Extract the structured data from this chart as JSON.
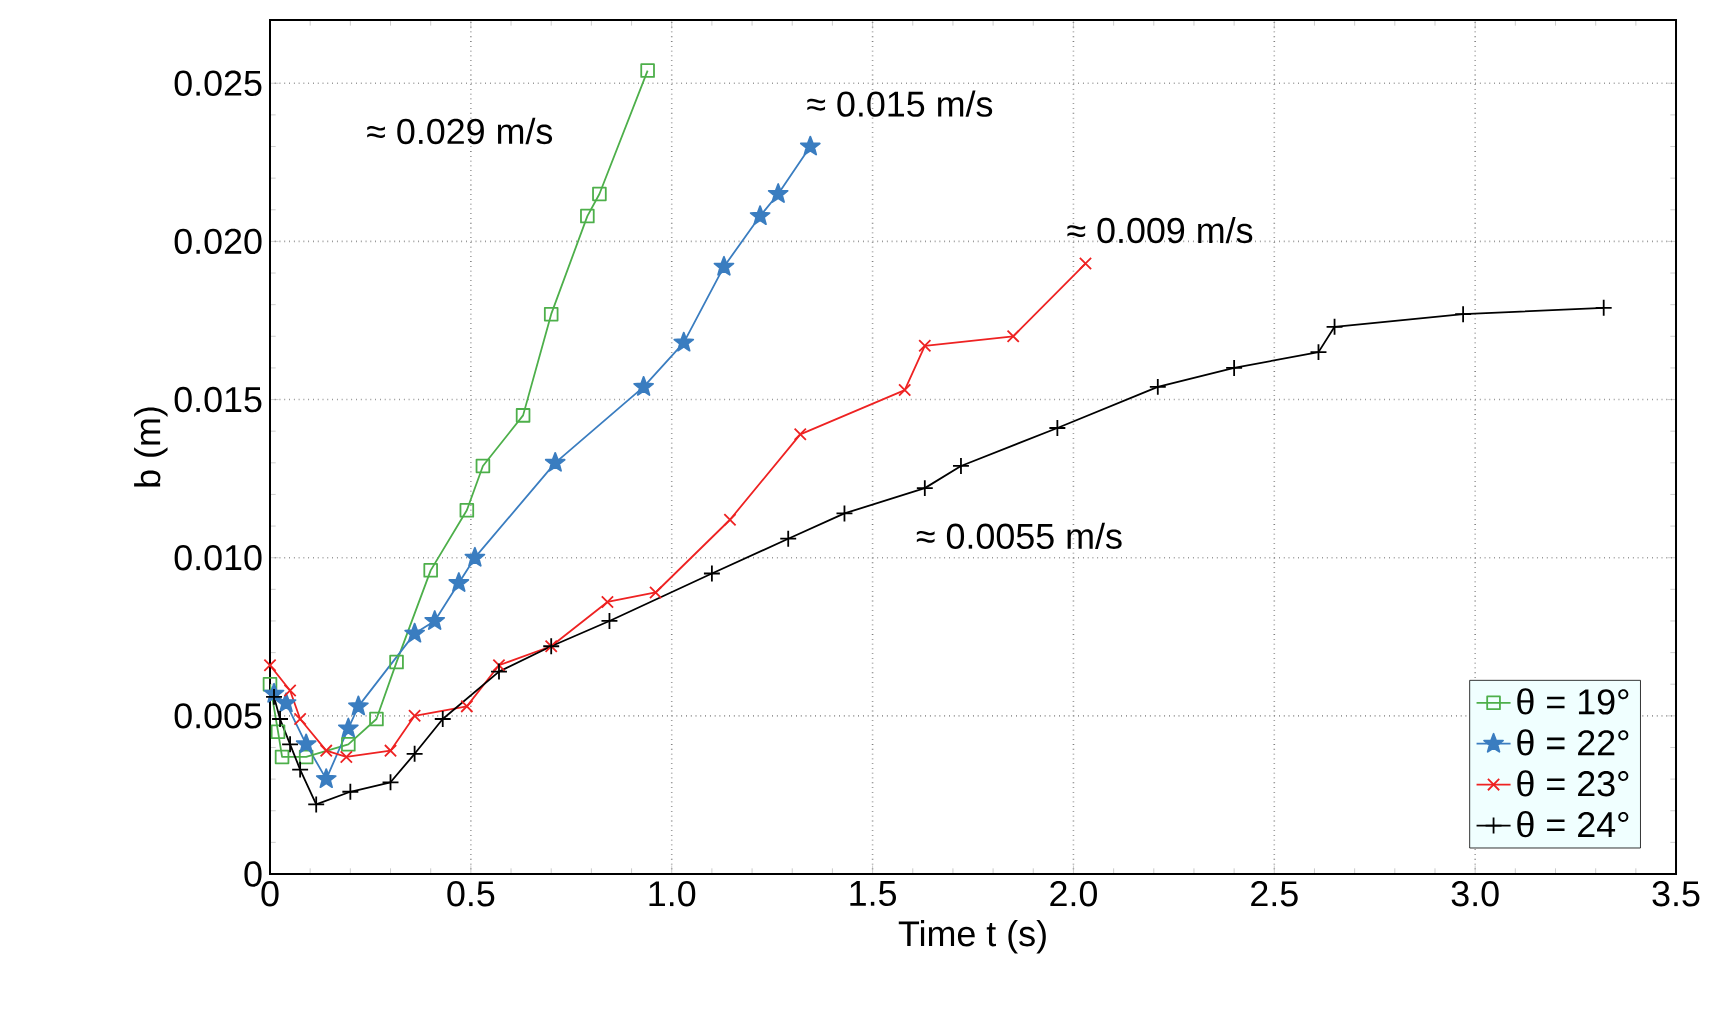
{
  "chart_data": {
    "type": "line",
    "xlabel": "Time t (s)",
    "ylabel": "b (m)",
    "xlim": [
      0,
      3.5
    ],
    "ylim": [
      0,
      0.027
    ],
    "xticks": [
      0,
      {
        "value": 0.5,
        "label": "0.5"
      },
      {
        "value": 1,
        "label": "1.0"
      },
      {
        "value": 1.5,
        "label": "1.5"
      },
      {
        "value": 2,
        "label": "2.0"
      },
      {
        "value": 2.5,
        "label": "2.5"
      },
      {
        "value": 3,
        "label": "3.0"
      },
      {
        "value": 3.5,
        "label": "3.5"
      }
    ],
    "yticks": [
      0,
      {
        "value": 0.005,
        "label": "0.005"
      },
      {
        "value": 0.01,
        "label": "0.010"
      },
      {
        "value": 0.015,
        "label": "0.015"
      },
      {
        "value": 0.02,
        "label": "0.020"
      },
      {
        "value": 0.025,
        "label": "0.025"
      }
    ],
    "grid": true,
    "legend": "bottom right",
    "line_style": "solid",
    "series": [
      {
        "name": "θ = 19°",
        "color": "#4daf4a",
        "marker": "square",
        "x": [
          0.0,
          0.02,
          0.03,
          0.09,
          0.195,
          0.265,
          0.315,
          0.4,
          0.49,
          0.53,
          0.63,
          0.7,
          0.79,
          0.82,
          0.94
        ],
        "values": [
          0.006,
          0.0045,
          0.0037,
          0.0037,
          0.0041,
          0.0049,
          0.0067,
          0.0096,
          0.0115,
          0.0129,
          0.0145,
          0.0177,
          0.0208,
          0.0215,
          0.0254
        ]
      },
      {
        "name": "θ = 22°",
        "color": "#3a7dc0",
        "marker": "star",
        "x": [
          0.01,
          0.04,
          0.09,
          0.14,
          0.195,
          0.22,
          0.36,
          0.41,
          0.47,
          0.51,
          0.71,
          0.93,
          1.03,
          1.13,
          1.22,
          1.265,
          1.345
        ],
        "values": [
          0.0057,
          0.0054,
          0.0041,
          0.003,
          0.0046,
          0.0053,
          0.0076,
          0.008,
          0.0092,
          0.01,
          0.013,
          0.0154,
          0.0168,
          0.0192,
          0.0208,
          0.0215,
          0.023
        ]
      },
      {
        "name": "θ = 23°",
        "color": "#ee2222",
        "marker": "cross",
        "x": [
          0.0,
          0.05,
          0.075,
          0.14,
          0.19,
          0.3,
          0.36,
          0.49,
          0.57,
          0.7,
          0.84,
          0.96,
          1.145,
          1.32,
          1.58,
          1.63,
          1.85,
          2.03
        ],
        "values": [
          0.0066,
          0.0058,
          0.0049,
          0.0039,
          0.0037,
          0.0039,
          0.005,
          0.0053,
          0.0066,
          0.0072,
          0.0086,
          0.0089,
          0.0112,
          0.0139,
          0.0153,
          0.0167,
          0.017,
          0.0193
        ]
      },
      {
        "name": "θ = 24°",
        "color": "#000000",
        "marker": "plus",
        "x": [
          0.01,
          0.025,
          0.05,
          0.075,
          0.115,
          0.2,
          0.3,
          0.36,
          0.43,
          0.57,
          0.7,
          0.845,
          1.1,
          1.29,
          1.43,
          1.63,
          1.72,
          1.96,
          2.21,
          2.4,
          2.61,
          2.65,
          2.97,
          3.32
        ],
        "values": [
          0.0056,
          0.0049,
          0.0041,
          0.0033,
          0.0022,
          0.0026,
          0.0029,
          0.0038,
          0.0049,
          0.0064,
          0.0072,
          0.008,
          0.0095,
          0.0106,
          0.0114,
          0.0122,
          0.0129,
          0.0141,
          0.0154,
          0.016,
          0.0165,
          0.0173,
          0.0177,
          0.0179
        ]
      }
    ],
    "annotations": [
      "≈ 0.029 m/s",
      "≈ 0.015 m/s",
      "≈ 0.009 m/s",
      "≈ 0.0055 m/s"
    ]
  }
}
